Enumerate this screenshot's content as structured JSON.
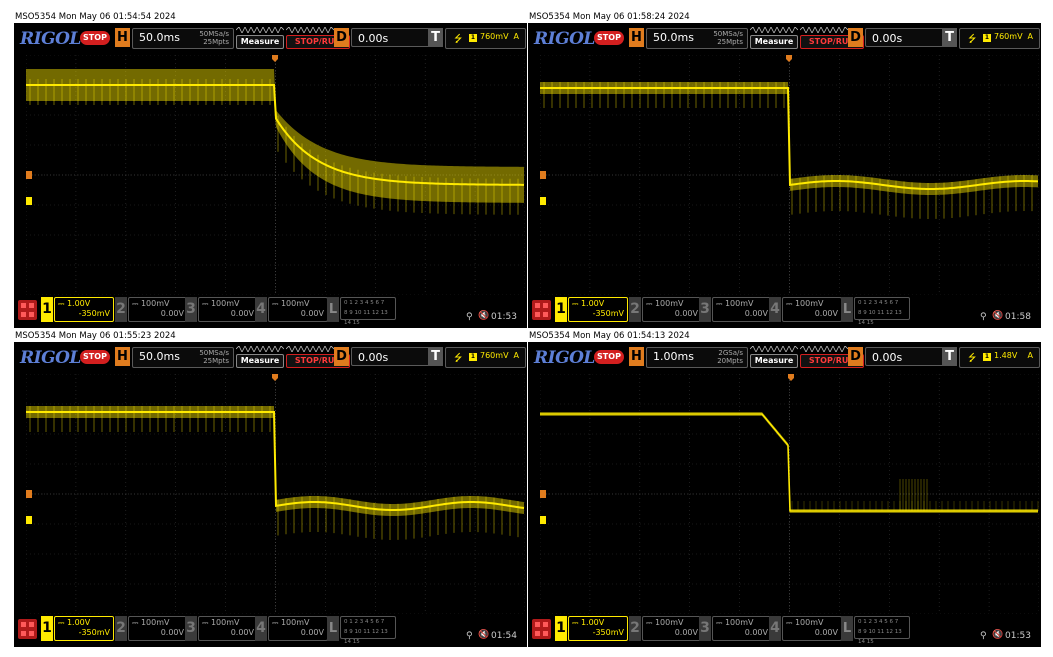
{
  "brand": "RIGOL",
  "run_state": "STOP",
  "measure_label": "Measure",
  "stoprun_label": "STOP/RUN",
  "colors": {
    "trace": "#ffea00",
    "accent": "#e07c1e",
    "stop": "#d31f1f"
  },
  "icons": [
    "menu-icon",
    "usb-icon",
    "speaker-mute-icon",
    "trigger-edge-icon",
    "trigger-marker-icon"
  ],
  "panels": [
    {
      "title": "MSO5354  Mon May 06 01:54:54 2024",
      "h_label": "H",
      "timebase": "50.0ms",
      "sample_rate": "50MSa/s",
      "memory_depth": "25Mpts",
      "d_label": "D",
      "delay": "0.00s",
      "t_label": "T",
      "trigger_level": "760mV",
      "trigger_mode": "A",
      "ch1": {
        "num": "1",
        "scale": "1.00V",
        "offset": "-350mV"
      },
      "ch2": {
        "num": "2",
        "scale": "100mV",
        "offset": "0.00V"
      },
      "ch3": {
        "num": "3",
        "scale": "100mV",
        "offset": "0.00V"
      },
      "ch4": {
        "num": "4",
        "scale": "100mV",
        "offset": "0.00V"
      },
      "la": {
        "num": "L",
        "row1": "0 1 2 3  4 5 6 7",
        "row2": "8 9 10 11 12 13 14 15"
      },
      "clock": "01:53"
    },
    {
      "title": "MSO5354  Mon May 06 01:58:24 2024",
      "h_label": "H",
      "timebase": "50.0ms",
      "sample_rate": "50MSa/s",
      "memory_depth": "25Mpts",
      "d_label": "D",
      "delay": "0.00s",
      "t_label": "T",
      "trigger_level": "760mV",
      "trigger_mode": "A",
      "ch1": {
        "num": "1",
        "scale": "1.00V",
        "offset": "-350mV"
      },
      "ch2": {
        "num": "2",
        "scale": "100mV",
        "offset": "0.00V"
      },
      "ch3": {
        "num": "3",
        "scale": "100mV",
        "offset": "0.00V"
      },
      "ch4": {
        "num": "4",
        "scale": "100mV",
        "offset": "0.00V"
      },
      "la": {
        "num": "L",
        "row1": "0 1 2 3  4 5 6 7",
        "row2": "8 9 10 11 12 13 14 15"
      },
      "clock": "01:58"
    },
    {
      "title": "MSO5354  Mon May 06 01:55:23 2024",
      "h_label": "H",
      "timebase": "50.0ms",
      "sample_rate": "50MSa/s",
      "memory_depth": "25Mpts",
      "d_label": "D",
      "delay": "0.00s",
      "t_label": "T",
      "trigger_level": "760mV",
      "trigger_mode": "A",
      "ch1": {
        "num": "1",
        "scale": "1.00V",
        "offset": "-350mV"
      },
      "ch2": {
        "num": "2",
        "scale": "100mV",
        "offset": "0.00V"
      },
      "ch3": {
        "num": "3",
        "scale": "100mV",
        "offset": "0.00V"
      },
      "ch4": {
        "num": "4",
        "scale": "100mV",
        "offset": "0.00V"
      },
      "la": {
        "num": "L",
        "row1": "0 1 2 3  4 5 6 7",
        "row2": "8 9 10 11 12 13 14 15"
      },
      "clock": "01:54"
    },
    {
      "title": "MSO5354  Mon May 06 01:54:13 2024",
      "h_label": "H",
      "timebase": "1.00ms",
      "sample_rate": "2GSa/s",
      "memory_depth": "20Mpts",
      "d_label": "D",
      "delay": "0.00s",
      "t_label": "T",
      "trigger_level": "1.48V",
      "trigger_mode": "A",
      "ch1": {
        "num": "1",
        "scale": "1.00V",
        "offset": "-350mV"
      },
      "ch2": {
        "num": "2",
        "scale": "100mV",
        "offset": "0.00V"
      },
      "ch3": {
        "num": "3",
        "scale": "100mV",
        "offset": "0.00V"
      },
      "ch4": {
        "num": "4",
        "scale": "100mV",
        "offset": "0.00V"
      },
      "la": {
        "num": "L",
        "row1": "0 1 2 3  4 5 6 7",
        "row2": "8 9 10 11 12 13 14 15"
      },
      "clock": "01:53"
    }
  ]
}
